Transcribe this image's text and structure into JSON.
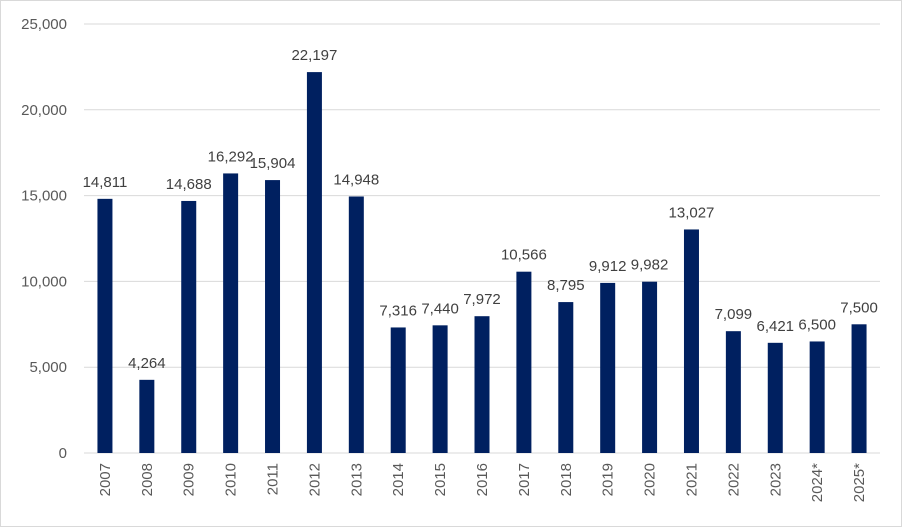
{
  "chart_data": {
    "type": "bar",
    "title": "",
    "xlabel": "",
    "ylabel": "",
    "ylim": [
      0,
      25000
    ],
    "yticks": [
      0,
      5000,
      10000,
      15000,
      20000,
      25000
    ],
    "ytick_labels": [
      "0",
      "5,000",
      "10,000",
      "15,000",
      "20,000",
      "25,000"
    ],
    "grid": true,
    "legend": "none",
    "bar_color": "#002060",
    "categories": [
      "2007",
      "2008",
      "2009",
      "2010",
      "2011",
      "2012",
      "2013",
      "2014",
      "2015",
      "2016",
      "2017",
      "2018",
      "2019",
      "2020",
      "2021",
      "2022",
      "2023",
      "2024*",
      "2025*"
    ],
    "values": [
      14811,
      4264,
      14688,
      16292,
      15904,
      22197,
      14948,
      7316,
      7440,
      7972,
      10566,
      8795,
      9912,
      9982,
      13027,
      7099,
      6421,
      6500,
      7500
    ],
    "data_labels": [
      "14,811",
      "4,264",
      "14,688",
      "16,292",
      "15,904",
      "22,197",
      "14,948",
      "7,316",
      "7,440",
      "7,972",
      "10,566",
      "8,795",
      "9,912",
      "9,982",
      "13,027",
      "7,099",
      "6,421",
      "6,500",
      "7,500"
    ]
  }
}
